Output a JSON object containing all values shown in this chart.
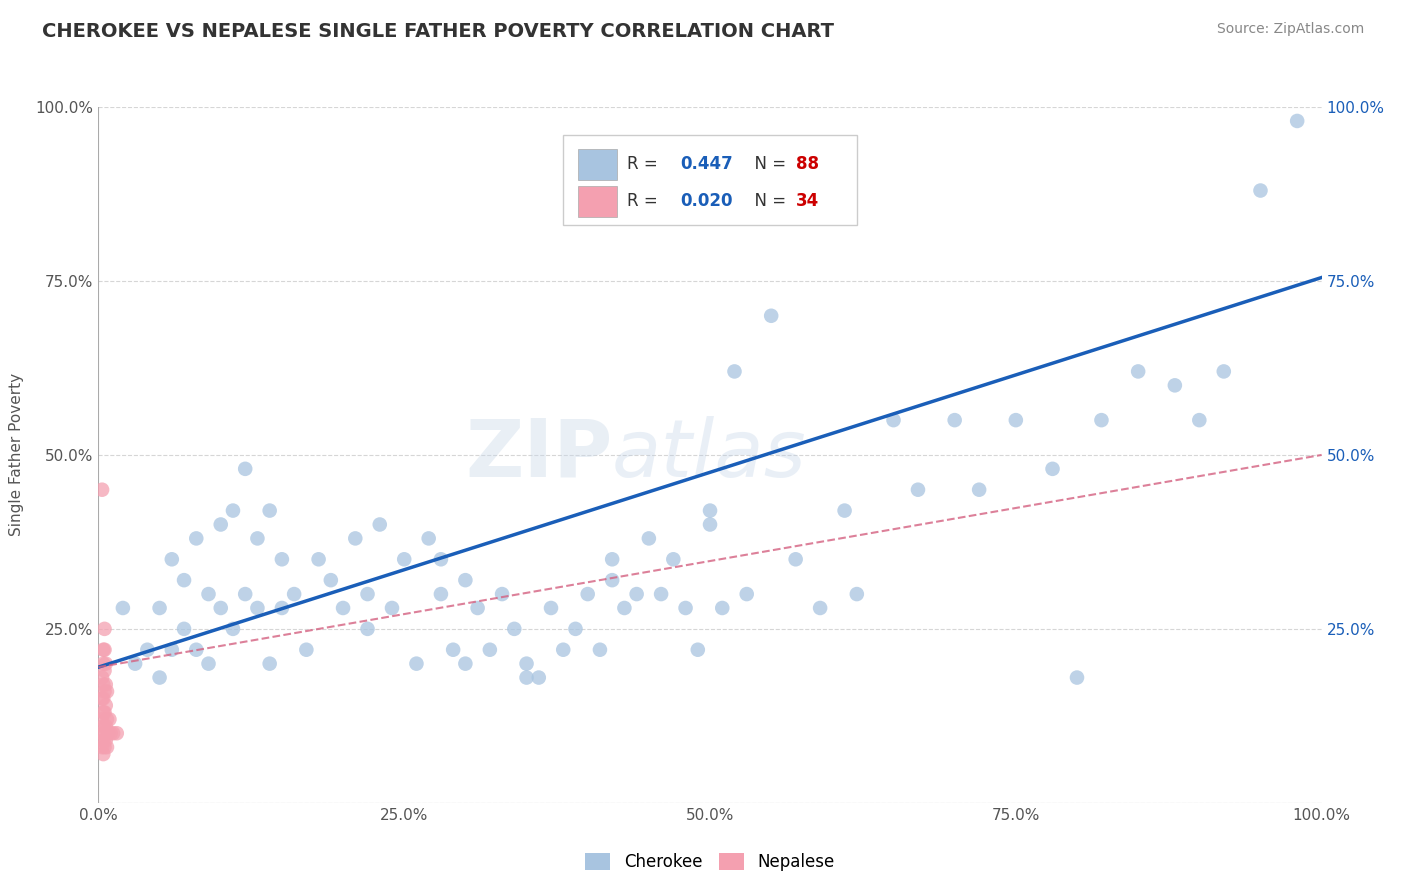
{
  "title": "CHEROKEE VS NEPALESE SINGLE FATHER POVERTY CORRELATION CHART",
  "source": "Source: ZipAtlas.com",
  "ylabel": "Single Father Poverty",
  "xlim": [
    0,
    1
  ],
  "ylim": [
    0,
    1
  ],
  "xticks": [
    0,
    0.25,
    0.5,
    0.75,
    1.0
  ],
  "yticks": [
    0,
    0.25,
    0.5,
    0.75,
    1.0
  ],
  "xticklabels": [
    "0.0%",
    "25.0%",
    "50.0%",
    "75.0%",
    "100.0%"
  ],
  "yticklabels": [
    "",
    "25.0%",
    "50.0%",
    "75.0%",
    "100.0%"
  ],
  "cherokee_R": 0.447,
  "cherokee_N": 88,
  "nepalese_R": 0.02,
  "nepalese_N": 34,
  "cherokee_color": "#a8c4e0",
  "cherokee_line_color": "#1a5eb8",
  "nepalese_color": "#f4a0b0",
  "nepalese_line_color": "#d46080",
  "watermark": "ZIPatlas",
  "background_color": "#ffffff",
  "title_color": "#333333",
  "grid_color": "#cccccc",
  "legend_R_color": "#1a5eb8",
  "legend_N_color": "#cc0000",
  "cherokee_x": [
    0.02,
    0.03,
    0.04,
    0.05,
    0.05,
    0.06,
    0.06,
    0.07,
    0.07,
    0.08,
    0.08,
    0.09,
    0.09,
    0.1,
    0.1,
    0.11,
    0.11,
    0.12,
    0.12,
    0.13,
    0.13,
    0.14,
    0.14,
    0.15,
    0.15,
    0.16,
    0.17,
    0.18,
    0.19,
    0.2,
    0.21,
    0.22,
    0.22,
    0.23,
    0.24,
    0.25,
    0.26,
    0.27,
    0.28,
    0.29,
    0.3,
    0.3,
    0.31,
    0.32,
    0.33,
    0.34,
    0.35,
    0.36,
    0.37,
    0.38,
    0.39,
    0.4,
    0.41,
    0.42,
    0.43,
    0.44,
    0.45,
    0.46,
    0.47,
    0.48,
    0.49,
    0.5,
    0.51,
    0.52,
    0.53,
    0.55,
    0.57,
    0.59,
    0.61,
    0.62,
    0.65,
    0.67,
    0.7,
    0.72,
    0.75,
    0.78,
    0.8,
    0.82,
    0.85,
    0.88,
    0.9,
    0.92,
    0.95,
    0.98,
    0.28,
    0.35,
    0.42,
    0.5
  ],
  "cherokee_y": [
    0.28,
    0.2,
    0.22,
    0.18,
    0.28,
    0.22,
    0.35,
    0.25,
    0.32,
    0.22,
    0.38,
    0.2,
    0.3,
    0.28,
    0.4,
    0.25,
    0.42,
    0.3,
    0.48,
    0.28,
    0.38,
    0.2,
    0.42,
    0.28,
    0.35,
    0.3,
    0.22,
    0.35,
    0.32,
    0.28,
    0.38,
    0.3,
    0.25,
    0.4,
    0.28,
    0.35,
    0.2,
    0.38,
    0.3,
    0.22,
    0.32,
    0.2,
    0.28,
    0.22,
    0.3,
    0.25,
    0.2,
    0.18,
    0.28,
    0.22,
    0.25,
    0.3,
    0.22,
    0.35,
    0.28,
    0.3,
    0.38,
    0.3,
    0.35,
    0.28,
    0.22,
    0.4,
    0.28,
    0.62,
    0.3,
    0.7,
    0.35,
    0.28,
    0.42,
    0.3,
    0.55,
    0.45,
    0.55,
    0.45,
    0.55,
    0.48,
    0.18,
    0.55,
    0.62,
    0.6,
    0.55,
    0.62,
    0.88,
    0.98,
    0.35,
    0.18,
    0.32,
    0.42
  ],
  "nepalese_x": [
    0.003,
    0.003,
    0.003,
    0.003,
    0.003,
    0.004,
    0.004,
    0.004,
    0.004,
    0.004,
    0.004,
    0.004,
    0.004,
    0.005,
    0.005,
    0.005,
    0.005,
    0.005,
    0.005,
    0.005,
    0.006,
    0.006,
    0.006,
    0.006,
    0.006,
    0.007,
    0.007,
    0.007,
    0.008,
    0.009,
    0.01,
    0.012,
    0.015,
    0.003
  ],
  "nepalese_y": [
    0.08,
    0.1,
    0.12,
    0.15,
    0.18,
    0.07,
    0.09,
    0.11,
    0.13,
    0.15,
    0.17,
    0.2,
    0.22,
    0.08,
    0.1,
    0.13,
    0.16,
    0.19,
    0.22,
    0.25,
    0.09,
    0.11,
    0.14,
    0.17,
    0.2,
    0.08,
    0.12,
    0.16,
    0.1,
    0.12,
    0.1,
    0.1,
    0.1,
    0.45
  ],
  "cherokee_line_x": [
    0.0,
    1.0
  ],
  "cherokee_line_y": [
    0.195,
    0.755
  ],
  "nepalese_line_x": [
    0.0,
    1.0
  ],
  "nepalese_line_y": [
    0.195,
    0.5
  ]
}
